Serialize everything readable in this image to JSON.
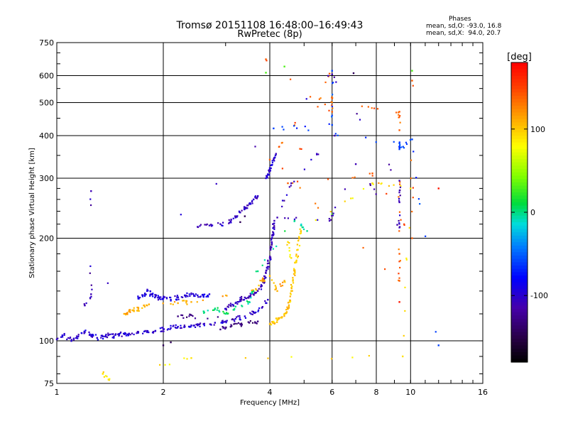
{
  "chart_data": {
    "type": "scatter",
    "title": "Tromsø 20151108 16:48:00–16:49:43",
    "subtitle": "RwPretec (8p)",
    "xlabel": "Frequency [MHz]",
    "ylabel": "Stationary phase Virtual Height [km]",
    "x_scale": "log",
    "y_scale": "log",
    "xlim": [
      1,
      16
    ],
    "ylim": [
      75,
      750
    ],
    "x_ticks": [
      1,
      2,
      4,
      6,
      8,
      10,
      16
    ],
    "x_tick_labels": [
      "1",
      "2",
      "4",
      "6",
      "8",
      "10",
      "16"
    ],
    "y_ticks": [
      75,
      100,
      200,
      300,
      400,
      500,
      600,
      750
    ],
    "y_tick_labels": [
      "75",
      "100",
      "200",
      "300",
      "400",
      "500",
      "600",
      "750"
    ],
    "grid": true,
    "colorbar": {
      "label": "[deg]",
      "range": [
        -180,
        180
      ],
      "ticks": [
        100,
        0,
        -100
      ],
      "tick_labels": [
        "100",
        "0",
        "-100"
      ]
    },
    "phase_info": {
      "title": "Phases",
      "line_o": "mean, sd,O: -93.0, 16.8",
      "line_x": "mean, sd,X:  94.0, 20.7"
    },
    "traces": [
      {
        "name": "",
        "phase": -100,
        "points": [
          [
            1.0,
            101
          ],
          [
            1.05,
            104
          ],
          [
            1.1,
            100
          ],
          [
            1.15,
            103
          ],
          [
            1.2,
            106
          ],
          [
            1.25,
            104
          ],
          [
            1.3,
            102
          ],
          [
            1.35,
            103
          ],
          [
            1.4,
            104
          ],
          [
            1.45,
            103
          ],
          [
            1.5,
            104
          ],
          [
            1.55,
            105
          ],
          [
            1.6,
            105
          ],
          [
            1.7,
            106
          ],
          [
            1.8,
            106
          ],
          [
            1.9,
            107
          ],
          [
            2.0,
            108
          ],
          [
            2.1,
            109
          ],
          [
            2.2,
            110
          ],
          [
            2.3,
            110
          ],
          [
            2.4,
            111
          ],
          [
            2.5,
            111
          ],
          [
            2.6,
            112
          ],
          [
            2.8,
            113
          ],
          [
            3.0,
            114
          ],
          [
            3.2,
            116
          ],
          [
            3.4,
            118
          ],
          [
            3.6,
            121
          ],
          [
            3.8,
            125
          ],
          [
            3.95,
            132
          ]
        ]
      },
      {
        "name": "",
        "phase": -95,
        "points": [
          [
            1.7,
            133
          ],
          [
            1.75,
            136
          ],
          [
            1.8,
            140
          ],
          [
            1.85,
            137
          ],
          [
            1.9,
            135
          ],
          [
            1.95,
            133
          ],
          [
            2.0,
            133
          ],
          [
            2.1,
            132
          ],
          [
            2.2,
            134
          ],
          [
            2.3,
            136
          ],
          [
            2.4,
            137
          ],
          [
            2.5,
            136
          ],
          [
            2.6,
            135
          ],
          [
            2.7,
            137
          ]
        ]
      },
      {
        "name": "",
        "phase": -110,
        "points": [
          [
            3.0,
            124
          ],
          [
            3.1,
            127
          ],
          [
            3.2,
            129
          ],
          [
            3.3,
            132
          ],
          [
            3.4,
            134
          ],
          [
            3.5,
            135
          ],
          [
            3.6,
            137
          ],
          [
            3.7,
            140
          ],
          [
            3.8,
            145
          ],
          [
            3.85,
            150
          ],
          [
            3.9,
            158
          ],
          [
            3.95,
            165
          ],
          [
            4.0,
            175
          ],
          [
            4.02,
            185
          ],
          [
            4.05,
            195
          ],
          [
            4.08,
            205
          ],
          [
            4.1,
            215
          ],
          [
            4.12,
            225
          ]
        ]
      },
      {
        "name": "",
        "phase": -105,
        "points": [
          [
            2.5,
            216
          ],
          [
            2.7,
            218
          ],
          [
            2.9,
            220
          ],
          [
            3.1,
            224
          ],
          [
            3.2,
            230
          ],
          [
            3.3,
            238
          ],
          [
            3.4,
            244
          ],
          [
            3.5,
            252
          ],
          [
            3.6,
            260
          ],
          [
            3.7,
            266
          ]
        ]
      },
      {
        "name": "",
        "phase": -100,
        "points": [
          [
            3.9,
            300
          ],
          [
            3.95,
            308
          ],
          [
            4.0,
            318
          ],
          [
            4.05,
            328
          ],
          [
            4.1,
            340
          ],
          [
            4.15,
            350
          ]
        ]
      },
      {
        "name": "",
        "phase": 100,
        "points": [
          [
            4.0,
            112
          ],
          [
            4.1,
            113
          ],
          [
            4.2,
            115
          ],
          [
            4.3,
            117
          ],
          [
            4.4,
            120
          ],
          [
            4.5,
            124
          ],
          [
            4.55,
            130
          ],
          [
            4.6,
            140
          ],
          [
            4.65,
            150
          ],
          [
            4.7,
            160
          ],
          [
            4.75,
            170
          ],
          [
            4.8,
            185
          ],
          [
            4.85,
            200
          ],
          [
            4.9,
            210
          ]
        ]
      },
      {
        "name": "",
        "phase": 110,
        "points": [
          [
            1.55,
            120
          ],
          [
            1.6,
            122
          ],
          [
            1.65,
            123
          ],
          [
            1.7,
            124
          ],
          [
            1.8,
            127
          ],
          [
            2.2,
            129
          ],
          [
            2.4,
            130
          ],
          [
            3.6,
            140
          ],
          [
            3.8,
            150
          ],
          [
            4.0,
            155
          ],
          [
            4.2,
            140
          ],
          [
            4.4,
            150
          ]
        ]
      },
      {
        "name": "",
        "phase": 0,
        "points": [
          [
            2.6,
            122
          ],
          [
            2.8,
            124
          ],
          [
            3.0,
            120
          ],
          [
            3.2,
            126
          ],
          [
            3.5,
            130
          ],
          [
            3.7,
            160
          ],
          [
            4.7,
            225
          ],
          [
            5.1,
            210
          ]
        ]
      },
      {
        "name": "",
        "phase": -130,
        "points": [
          [
            2.9,
            108
          ],
          [
            3.1,
            110
          ],
          [
            3.3,
            112
          ],
          [
            3.5,
            113
          ],
          [
            3.7,
            114
          ],
          [
            2.2,
            118
          ],
          [
            2.4,
            119
          ]
        ]
      },
      {
        "name": "",
        "phase": 140,
        "points": [
          [
            3.9,
            670
          ],
          [
            6.0,
            470
          ],
          [
            6.0,
            515
          ],
          [
            9.3,
            470
          ],
          [
            9.3,
            415
          ],
          [
            9.3,
            180
          ],
          [
            9.3,
            150
          ],
          [
            4.0,
            340
          ],
          [
            5.9,
            608
          ],
          [
            4.5,
            290
          ],
          [
            7.8,
            310
          ],
          [
            10.1,
            200
          ],
          [
            10.1,
            580
          ]
        ]
      },
      {
        "name": "",
        "phase": 90,
        "points": [
          [
            1.35,
            80
          ],
          [
            1.4,
            77
          ],
          [
            2.4,
            89
          ],
          [
            9.5,
            90
          ],
          [
            10.0,
            280
          ],
          [
            7.8,
            290
          ],
          [
            4.5,
            195
          ],
          [
            4.6,
            175
          ]
        ]
      },
      {
        "name": "",
        "phase": 170,
        "points": [
          [
            12.0,
            280
          ],
          [
            9.3,
            130
          ]
        ]
      },
      {
        "name": "",
        "phase": 30,
        "points": [
          [
            4.4,
            638
          ],
          [
            3.9,
            612
          ],
          [
            10.1,
            620
          ],
          [
            6.0,
            235
          ]
        ]
      },
      {
        "name": "",
        "phase": -60,
        "points": [
          [
            6.0,
            620
          ],
          [
            6.0,
            430
          ],
          [
            4.1,
            420
          ],
          [
            9.3,
            380
          ],
          [
            9.3,
            365
          ],
          [
            10.1,
            390
          ],
          [
            12.0,
            97
          ]
        ]
      },
      {
        "name": "",
        "phase": -110,
        "points": [
          [
            1.25,
            275
          ],
          [
            1.25,
            137
          ],
          [
            1.2,
            127
          ],
          [
            6.0,
            605
          ],
          [
            9.3,
            295
          ],
          [
            9.3,
            255
          ],
          [
            9.3,
            215
          ],
          [
            7.0,
            330
          ],
          [
            5.9,
            225
          ],
          [
            4.2,
            230
          ],
          [
            4.6,
            290
          ],
          [
            6.1,
            400
          ]
        ]
      },
      {
        "name": "",
        "phase": -145,
        "points": [
          [
            6.9,
            610
          ],
          [
            2.0,
            97
          ],
          [
            2.1,
            99
          ],
          [
            3.3,
            223
          ],
          [
            3.4,
            232
          ]
        ]
      }
    ]
  }
}
